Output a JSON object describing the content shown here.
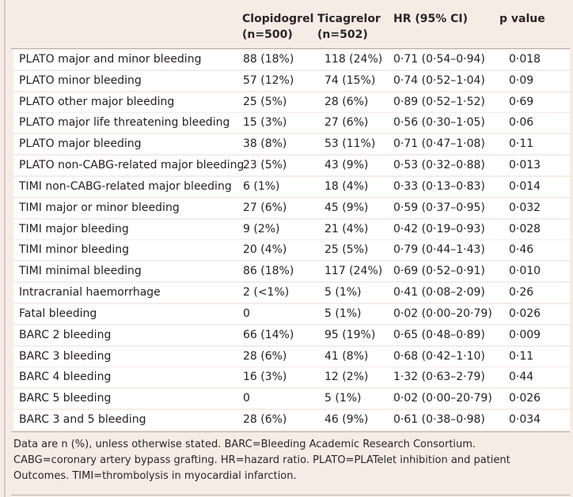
{
  "header": {
    "clopidogrel": [
      "Clopidogrel",
      "(n=500)"
    ],
    "ticagrelor": [
      "Ticagrelor",
      "(n=502)"
    ],
    "hr": "HR (95% CI)",
    "pvalue": "p value"
  },
  "rows": [
    {
      "label": "PLATO major and minor bleeding",
      "clop": "88 (18%)",
      "tic": "118 (24%)",
      "hr": "0·71 (0·54–0·94)",
      "p": "0·018"
    },
    {
      "label": "PLATO minor bleeding",
      "clop": "57 (12%)",
      "tic": "74 (15%)",
      "hr": "0·74 (0·52–1·04)",
      "p": "0·09"
    },
    {
      "label": "PLATO other major bleeding",
      "clop": "25 (5%)",
      "tic": "28 (6%)",
      "hr": "0·89 (0·52–1·52)",
      "p": "0·69"
    },
    {
      "label": "PLATO major life threatening bleeding",
      "clop": "15 (3%)",
      "tic": "27 (6%)",
      "hr": "0·56 (0·30–1·05)",
      "p": "0·06"
    },
    {
      "label": "PLATO major bleeding",
      "clop": "38 (8%)",
      "tic": "53 (11%)",
      "hr": "0·71 (0·47–1·08)",
      "p": "0·11"
    },
    {
      "label": "PLATO non-CABG-related major bleeding",
      "clop": "23 (5%)",
      "tic": "43 (9%)",
      "hr": "0·53 (0·32–0·88)",
      "p": "0·013"
    },
    {
      "label": "TIMI non-CABG-related major bleeding",
      "clop": "6 (1%)",
      "tic": "18 (4%)",
      "hr": "0·33 (0·13–0·83)",
      "p": "0·014"
    },
    {
      "label": "TIMI major or minor bleeding",
      "clop": "27 (6%)",
      "tic": "45 (9%)",
      "hr": "0·59 (0·37–0·95)",
      "p": "0·032"
    },
    {
      "label": "TIMI major bleeding",
      "clop": "9 (2%)",
      "tic": "21 (4%)",
      "hr": "0·42 (0·19–0·93)",
      "p": "0·028"
    },
    {
      "label": "TIMI minor bleeding",
      "clop": "20 (4%)",
      "tic": "25 (5%)",
      "hr": "0·79 (0·44–1·43)",
      "p": "0·46"
    },
    {
      "label": "TIMI minimal bleeding",
      "clop": "86 (18%)",
      "tic": "117 (24%)",
      "hr": "0·69 (0·52–0·91)",
      "p": "0·010"
    },
    {
      "label": "Intracranial haemorrhage",
      "clop": "2 (<1%)",
      "tic": "5 (1%)",
      "hr": "0·41 (0·08–2·09)",
      "p": "0·26"
    },
    {
      "label": "Fatal bleeding",
      "clop": "0",
      "tic": "5 (1%)",
      "hr": "0·02 (0·00–20·79)",
      "p": "0·026"
    },
    {
      "label": "BARC 2 bleeding",
      "clop": "66 (14%)",
      "tic": "95 (19%)",
      "hr": "0·65 (0·48–0·89)",
      "p": "0·009"
    },
    {
      "label": "BARC 3 bleeding",
      "clop": "28 (6%)",
      "tic": "41 (8%)",
      "hr": "0·68 (0·42–1·10)",
      "p": "0·11"
    },
    {
      "label": "BARC 4 bleeding",
      "clop": "16 (3%)",
      "tic": "12 (2%)",
      "hr": "1·32 (0·63–2·79)",
      "p": "0·44"
    },
    {
      "label": "BARC 5 bleeding",
      "clop": "0",
      "tic": "5 (1%)",
      "hr": "0·02 (0·00–20·79)",
      "p": "0·026"
    },
    {
      "label": "BARC 3 and 5 bleeding",
      "clop": "28 (6%)",
      "tic": "46 (9%)",
      "hr": "0·61 (0·38–0·98)",
      "p": "0·034"
    }
  ],
  "footnote": "Data are n (%), unless otherwise stated. BARC=Bleeding Academic Research Consortium. CABG=coronary artery bypass grafting. HR=hazard ratio. PLATO=PLATelet inhibition and patient Outcomes. TIMI=thrombolysis in myocardial infarction."
}
